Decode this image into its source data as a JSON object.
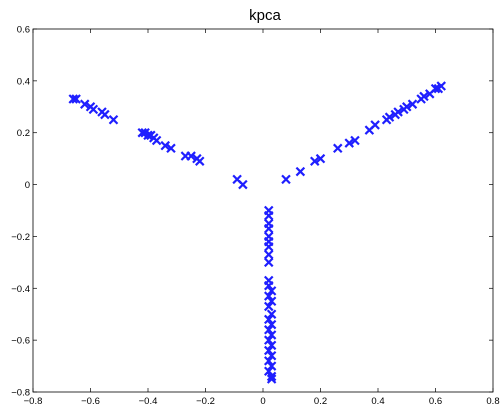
{
  "chart_data": {
    "type": "scatter",
    "title": "kpca",
    "xlabel": "",
    "ylabel": "",
    "xlim": [
      -0.8,
      0.8
    ],
    "ylim": [
      -0.8,
      0.6
    ],
    "xticks": [
      -0.8,
      -0.6,
      -0.4,
      -0.2,
      0,
      0.2,
      0.4,
      0.6,
      0.8
    ],
    "yticks": [
      -0.8,
      -0.6,
      -0.4,
      -0.2,
      0,
      0.2,
      0.4,
      0.6
    ],
    "xtick_labels": [
      "−0.8",
      "−0.6",
      "−0.4",
      "−0.2",
      "0",
      "0.2",
      "0.4",
      "0.6",
      "0.8"
    ],
    "ytick_labels": [
      "−0.8",
      "−0.6",
      "−0.4",
      "−0.2",
      "0",
      "0.2",
      "0.4",
      "0.6"
    ],
    "grid": false,
    "marker": "x",
    "color": "#1f1fff",
    "points": [
      [
        -0.66,
        0.33
      ],
      [
        -0.65,
        0.33
      ],
      [
        -0.62,
        0.31
      ],
      [
        -0.6,
        0.3
      ],
      [
        -0.59,
        0.29
      ],
      [
        -0.56,
        0.28
      ],
      [
        -0.55,
        0.27
      ],
      [
        -0.52,
        0.25
      ],
      [
        -0.42,
        0.2
      ],
      [
        -0.41,
        0.2
      ],
      [
        -0.4,
        0.19
      ],
      [
        -0.39,
        0.19
      ],
      [
        -0.38,
        0.18
      ],
      [
        -0.37,
        0.17
      ],
      [
        -0.34,
        0.15
      ],
      [
        -0.32,
        0.14
      ],
      [
        -0.27,
        0.11
      ],
      [
        -0.25,
        0.11
      ],
      [
        -0.23,
        0.1
      ],
      [
        -0.22,
        0.09
      ],
      [
        -0.09,
        0.02
      ],
      [
        -0.07,
        0.0
      ],
      [
        0.08,
        0.02
      ],
      [
        0.13,
        0.05
      ],
      [
        0.18,
        0.09
      ],
      [
        0.2,
        0.1
      ],
      [
        0.26,
        0.14
      ],
      [
        0.3,
        0.16
      ],
      [
        0.32,
        0.17
      ],
      [
        0.37,
        0.21
      ],
      [
        0.39,
        0.23
      ],
      [
        0.43,
        0.25
      ],
      [
        0.44,
        0.26
      ],
      [
        0.46,
        0.27
      ],
      [
        0.47,
        0.28
      ],
      [
        0.49,
        0.29
      ],
      [
        0.5,
        0.3
      ],
      [
        0.52,
        0.31
      ],
      [
        0.55,
        0.33
      ],
      [
        0.56,
        0.34
      ],
      [
        0.58,
        0.35
      ],
      [
        0.6,
        0.37
      ],
      [
        0.61,
        0.37
      ],
      [
        0.62,
        0.38
      ],
      [
        0.02,
        -0.1
      ],
      [
        0.02,
        -0.12
      ],
      [
        0.02,
        -0.15
      ],
      [
        0.02,
        -0.17
      ],
      [
        0.02,
        -0.2
      ],
      [
        0.02,
        -0.22
      ],
      [
        0.02,
        -0.24
      ],
      [
        0.02,
        -0.27
      ],
      [
        0.02,
        -0.3
      ],
      [
        0.02,
        -0.37
      ],
      [
        0.02,
        -0.39
      ],
      [
        0.03,
        -0.41
      ],
      [
        0.02,
        -0.43
      ],
      [
        0.03,
        -0.45
      ],
      [
        0.02,
        -0.47
      ],
      [
        0.03,
        -0.5
      ],
      [
        0.02,
        -0.52
      ],
      [
        0.03,
        -0.54
      ],
      [
        0.02,
        -0.56
      ],
      [
        0.03,
        -0.58
      ],
      [
        0.02,
        -0.6
      ],
      [
        0.03,
        -0.62
      ],
      [
        0.02,
        -0.64
      ],
      [
        0.03,
        -0.66
      ],
      [
        0.02,
        -0.68
      ],
      [
        0.03,
        -0.7
      ],
      [
        0.02,
        -0.72
      ],
      [
        0.03,
        -0.74
      ],
      [
        0.03,
        -0.75
      ]
    ]
  }
}
